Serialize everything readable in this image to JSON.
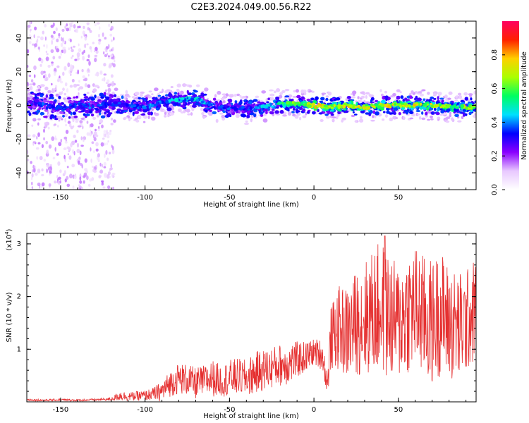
{
  "page": {
    "title": "C2E3.2024.049.00.56.R22"
  },
  "chart_data": [
    {
      "type": "heatmap",
      "title": "C2E3.2024.049.00.56.R22",
      "xlabel": "Height of straight line (km)",
      "ylabel": "Frequency (Hz)",
      "xlim": [
        -170,
        96
      ],
      "ylim": [
        -50,
        50
      ],
      "x_ticks": [
        -150,
        -100,
        -50,
        0,
        50
      ],
      "x_tick_labels": [
        "-150",
        "-100",
        "-50",
        "0",
        "50"
      ],
      "y_ticks": [
        -40,
        -20,
        0,
        20,
        40
      ],
      "y_tick_labels": [
        "-40",
        "-20",
        "0",
        "20",
        "40"
      ],
      "colorbar": {
        "label": "Normalized spectral amplitude",
        "range": [
          0,
          1
        ],
        "ticks": [
          0.0,
          0.2,
          0.4,
          0.6,
          0.8
        ],
        "tick_labels": [
          "0.0",
          "0.2",
          "0.4",
          "0.6",
          "0.8"
        ],
        "colormap": [
          "#ffffff",
          "#e8c8ff",
          "#8a00ff",
          "#0000ff",
          "#00e0ff",
          "#00ff60",
          "#aaff00",
          "#ffd000",
          "#ff2000",
          "#ff0060"
        ]
      },
      "ridge": {
        "x": [
          -170,
          -160,
          -150,
          -140,
          -130,
          -120,
          -110,
          -100,
          -90,
          -80,
          -70,
          -60,
          -50,
          -40,
          -30,
          -20,
          -10,
          0,
          10,
          20,
          30,
          40,
          50,
          60,
          70,
          80,
          90,
          96
        ],
        "frequency": [
          2,
          0,
          -2,
          0,
          -1,
          1,
          0,
          -1,
          2,
          3,
          4,
          0,
          -2,
          -2,
          -1,
          1,
          1,
          0,
          -1,
          0,
          -1,
          0,
          0,
          0,
          0,
          -1,
          -1,
          -1
        ],
        "peak_amplitude": [
          0.35,
          0.4,
          0.38,
          0.4,
          0.42,
          0.4,
          0.4,
          0.42,
          0.45,
          0.5,
          0.5,
          0.45,
          0.4,
          0.4,
          0.5,
          0.6,
          0.7,
          0.85,
          0.75,
          0.8,
          0.8,
          0.8,
          0.8,
          0.8,
          0.8,
          0.75,
          0.75,
          0.7
        ]
      },
      "scatter_noise_region_x": [
        -170,
        -118
      ]
    },
    {
      "type": "line",
      "xlabel": "Height of straight line (km)",
      "ylabel": "SNR (10 * v/v)",
      "y_multiplier_label": "(x10",
      "y_multiplier_exponent": "4",
      "y_multiplier_close": ")",
      "xlim": [
        -170,
        96
      ],
      "ylim": [
        0,
        3.2
      ],
      "x_ticks": [
        -150,
        -100,
        -50,
        0,
        50
      ],
      "x_tick_labels": [
        "-150",
        "-100",
        "-50",
        "0",
        "50"
      ],
      "y_ticks": [
        1,
        2,
        3
      ],
      "y_tick_labels": [
        "1",
        "2",
        "3"
      ],
      "color": "#e53030",
      "series": [
        {
          "x": [
            -170,
            -160,
            -150,
            -140,
            -130,
            -120,
            -115,
            -110,
            -100,
            -95,
            -90,
            -85,
            -80,
            -75,
            -70,
            -65,
            -60,
            -55,
            -50,
            -45,
            -40,
            -35,
            -30,
            -25,
            -20,
            -15,
            -10,
            -5,
            0,
            5,
            8,
            10,
            15,
            20,
            25,
            30,
            35,
            40,
            45,
            50,
            55,
            60,
            65,
            70,
            75,
            80,
            85,
            90,
            96
          ],
          "y": [
            0.04,
            0.03,
            0.04,
            0.03,
            0.04,
            0.05,
            0.12,
            0.1,
            0.12,
            0.15,
            0.2,
            0.35,
            0.45,
            0.42,
            0.35,
            0.4,
            0.45,
            0.4,
            0.45,
            0.48,
            0.45,
            0.55,
            0.6,
            0.65,
            0.7,
            0.72,
            0.8,
            0.85,
            0.95,
            0.9,
            0.3,
            1.2,
            1.4,
            1.3,
            1.5,
            1.6,
            1.7,
            1.8,
            1.6,
            1.5,
            1.7,
            1.8,
            1.6,
            1.5,
            1.7,
            1.5,
            1.4,
            1.5,
            1.8
          ],
          "spread": [
            0.02,
            0.02,
            0.02,
            0.02,
            0.02,
            0.03,
            0.1,
            0.08,
            0.1,
            0.12,
            0.2,
            0.25,
            0.3,
            0.3,
            0.3,
            0.3,
            0.35,
            0.3,
            0.35,
            0.35,
            0.35,
            0.4,
            0.4,
            0.4,
            0.4,
            0.4,
            0.35,
            0.3,
            0.25,
            0.3,
            0.2,
            0.6,
            0.8,
            0.9,
            1.0,
            1.1,
            1.2,
            1.3,
            1.2,
            1.1,
            1.2,
            1.2,
            1.2,
            1.2,
            1.2,
            1.1,
            1.1,
            1.0,
            1.0
          ]
        }
      ],
      "peak": {
        "x": 42,
        "y": 3.15
      }
    }
  ]
}
